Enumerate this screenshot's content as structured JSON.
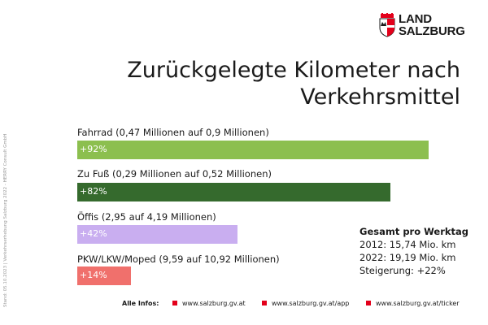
{
  "side_note": "Stand: 05.10.2023 | Verkehrserhebung Salzburg 2022 - HERRY Consult GmbH",
  "logo": {
    "line1": "LAND",
    "line2": "SALZBURG",
    "colors": {
      "red": "#e3001b",
      "white": "#ffffff",
      "black": "#1a1a1a"
    }
  },
  "title": {
    "line1": "Zurückgelegte Kilometer nach",
    "line2": "Verkehrsmittel"
  },
  "chart_data": {
    "type": "bar",
    "orientation": "horizontal",
    "categories": [
      "Fahrrad (0,47 Millionen auf 0,9 Millionen)",
      "Zu Fuß (0,29 Millionen auf 0,52 Millionen)",
      "Öffis (2,95 auf 4,19 Millionen)",
      "PKW/LKW/Moped (9,59 auf 10,92 Millionen)"
    ],
    "values": [
      92,
      82,
      42,
      14
    ],
    "value_labels": [
      "+92%",
      "+82%",
      "+42%",
      "+14%"
    ],
    "colors": [
      "#8cbf4f",
      "#356a2d",
      "#c9aef0",
      "#f0706c"
    ],
    "xlim": [
      0,
      100
    ],
    "grid": false
  },
  "totals": {
    "heading": "Gesamt pro Werktag",
    "lines": [
      "2012: 15,74 Mio. km",
      "2022: 19,19 Mio. km",
      "Steigerung: +22%"
    ]
  },
  "footer": {
    "label": "Alle Infos:",
    "links": [
      "www.salzburg.gv.at",
      "www.salzburg.gv.at/app",
      "www.salzburg.gv.at/ticker"
    ],
    "accent": "#e3001b"
  }
}
